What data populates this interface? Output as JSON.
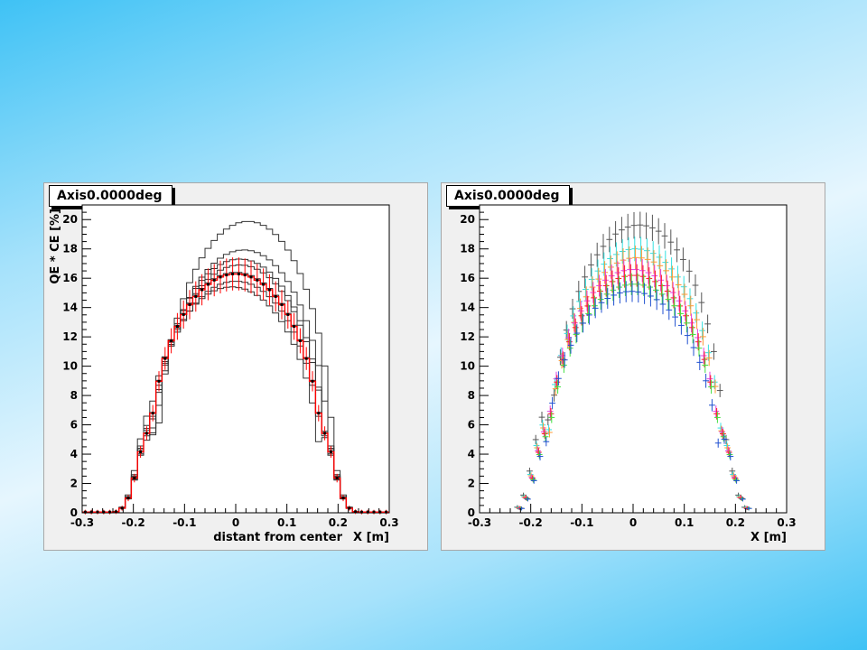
{
  "chart_data": [
    {
      "type": "step",
      "title": "Axis0.0000deg",
      "xlabel": "X [m]",
      "xlabel_extra": "distant from center",
      "ylabel": "QE * CE [%]",
      "xlim": [
        -0.3,
        0.3
      ],
      "ylim": [
        0,
        21
      ],
      "xticks": [
        "-0.3",
        "-0.2",
        "-0.1",
        "0",
        "0.1",
        "0.2",
        "0.3"
      ],
      "yticks": [
        "0",
        "2",
        "4",
        "6",
        "8",
        "10",
        "12",
        "14",
        "16",
        "18",
        "20"
      ],
      "grid": false,
      "legend": "none",
      "bins": 50,
      "series": [
        {
          "peak": 19.8,
          "center": 0.03,
          "color": "#333333"
        },
        {
          "peak": 17.9,
          "center": 0.02,
          "color": "#333333"
        },
        {
          "peak": 17.3,
          "center": 0.01,
          "color": "#333333"
        },
        {
          "peak": 16.9,
          "center": 0.01,
          "color": "#333333"
        },
        {
          "peak": 16.4,
          "center": 0.0,
          "color": "#333333"
        },
        {
          "peak": 15.8,
          "center": 0.0,
          "color": "#333333"
        },
        {
          "peak": 15.4,
          "center": -0.01,
          "color": "#333333"
        }
      ],
      "mean_series": {
        "peak": 16.3,
        "center": 0.0,
        "color": "#ff0000",
        "marker_color": "#000000"
      }
    },
    {
      "type": "errorbar",
      "title": "Axis0.0000deg",
      "xlabel": "X [m]",
      "ylabel": "",
      "xlim": [
        -0.3,
        0.3
      ],
      "ylim": [
        0,
        21
      ],
      "xticks": [
        "-0.3",
        "-0.2",
        "-0.1",
        "0",
        "0.1",
        "0.2",
        "0.3"
      ],
      "yticks": [
        "0",
        "2",
        "4",
        "6",
        "8",
        "10",
        "12",
        "14",
        "16",
        "18",
        "20"
      ],
      "grid": false,
      "legend": "none",
      "bins": 50,
      "series": [
        {
          "peak": 19.6,
          "center": 0.02,
          "color": "#555555"
        },
        {
          "peak": 18.0,
          "center": 0.01,
          "color": "#33e0e0"
        },
        {
          "peak": 17.4,
          "center": 0.01,
          "color": "#ff9933"
        },
        {
          "peak": 16.6,
          "center": 0.0,
          "color": "#e040e0"
        },
        {
          "peak": 16.2,
          "center": 0.0,
          "color": "#ff2020"
        },
        {
          "peak": 15.6,
          "center": 0.0,
          "color": "#40e040"
        },
        {
          "peak": 15.1,
          "center": -0.01,
          "color": "#2050d0"
        }
      ]
    }
  ]
}
